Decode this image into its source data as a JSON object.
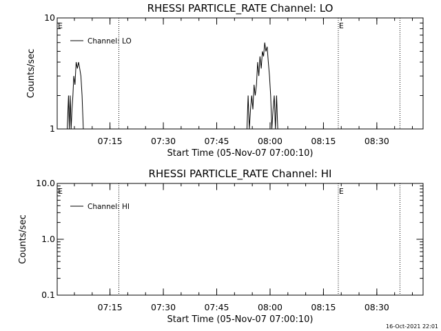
{
  "footer": {
    "timestamp": "16-Oct-2021 22:01"
  },
  "chart_data": [
    {
      "type": "line",
      "title": "RHESSI PARTICLE_RATE Channel: LO",
      "xlabel": "Start Time (05-Nov-07 07:00:10)",
      "ylabel": "Counts/sec",
      "yscale": "log",
      "xlim": [
        "07:00:10",
        "08:43:00"
      ],
      "ylim": [
        1,
        10
      ],
      "xticks": [
        "07:15",
        "07:30",
        "07:45",
        "08:00",
        "08:15",
        "08:30"
      ],
      "yticks": [
        "1",
        "10"
      ],
      "legend_position": "top-left",
      "event_markers": {
        "label": "E",
        "times": [
          "07:00:10",
          "08:19:10"
        ]
      },
      "vertical_lines": [
        "07:17:30",
        "08:19:10",
        "08:36:30"
      ],
      "series": [
        {
          "name": "Channel: LO",
          "color": "#000000",
          "x": [
            "07:03:00",
            "07:03:20",
            "07:03:35",
            "07:03:50",
            "07:04:05",
            "07:04:20",
            "07:04:35",
            "07:04:50",
            "07:05:10",
            "07:05:30",
            "07:05:50",
            "07:06:10",
            "07:06:30",
            "07:06:50",
            "07:07:10",
            "07:07:30",
            "07:07:50",
            "07:08:10",
            "07:08:30",
            "07:08:50",
            "07:09:10",
            "07:53:30",
            "07:53:50",
            "07:54:10",
            "07:54:30",
            "07:54:50",
            "07:55:10",
            "07:55:30",
            "07:55:50",
            "07:56:10",
            "07:56:30",
            "07:56:50",
            "07:57:10",
            "07:57:30",
            "07:57:50",
            "07:58:10",
            "07:58:30",
            "07:58:50",
            "07:59:10",
            "07:59:30",
            "07:59:50",
            "08:00:10",
            "08:00:30",
            "08:00:50",
            "08:01:10",
            "08:01:30",
            "08:01:50",
            "08:02:10",
            "08:02:30",
            "08:02:50",
            "08:03:10",
            "08:03:30",
            "08:03:50",
            "08:04:10"
          ],
          "y": [
            1,
            2,
            1,
            2,
            1,
            1.5,
            2,
            3,
            2.5,
            4,
            3.5,
            4,
            3.5,
            3,
            2,
            1,
            1,
            1,
            1,
            1,
            1,
            1,
            2,
            1,
            1.5,
            2,
            1.5,
            2.5,
            2,
            2.5,
            4,
            3,
            4.5,
            3.5,
            5,
            4.5,
            6,
            5,
            5.5,
            4,
            3,
            2,
            1,
            1.5,
            2,
            1,
            2,
            1,
            1,
            1,
            1,
            1,
            1,
            1
          ]
        }
      ]
    },
    {
      "type": "line",
      "title": "RHESSI PARTICLE_RATE Channel: HI",
      "xlabel": "Start Time (05-Nov-07 07:00:10)",
      "ylabel": "Counts/sec",
      "yscale": "log",
      "xlim": [
        "07:00:10",
        "08:43:00"
      ],
      "ylim": [
        0.1,
        10
      ],
      "xticks": [
        "07:15",
        "07:30",
        "07:45",
        "08:00",
        "08:15",
        "08:30"
      ],
      "yticks": [
        "0.1",
        "1.0",
        "10.0"
      ],
      "legend_position": "top-left",
      "event_markers": {
        "label": "E",
        "times": [
          "07:00:10",
          "08:19:10"
        ]
      },
      "vertical_lines": [
        "07:17:30",
        "08:19:10",
        "08:36:30"
      ],
      "series": [
        {
          "name": "Channel: HI",
          "color": "#000000",
          "x": [],
          "y": []
        }
      ]
    }
  ]
}
